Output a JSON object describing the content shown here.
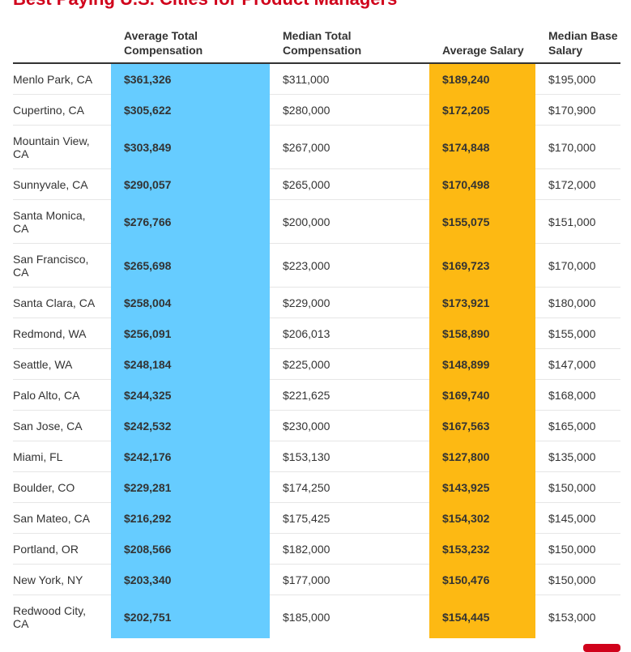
{
  "header": {
    "title": "Best Paying U.S. Cities for Product Managers"
  },
  "table": {
    "columns": [
      "",
      "Average Total Compensation",
      "Median Total Compensation",
      "Average Salary",
      "Median Base Salary"
    ],
    "rows": [
      [
        "Menlo Park, CA",
        "$361,326",
        "$311,000",
        "$189,240",
        "$195,000"
      ],
      [
        "Cupertino, CA",
        "$305,622",
        "$280,000",
        "$172,205",
        "$170,900"
      ],
      [
        "Mountain View, CA",
        "$303,849",
        "$267,000",
        "$174,848",
        "$170,000"
      ],
      [
        "Sunnyvale, CA",
        "$290,057",
        "$265,000",
        "$170,498",
        "$172,000"
      ],
      [
        "Santa Monica, CA",
        "$276,766",
        "$200,000",
        "$155,075",
        "$151,000"
      ],
      [
        "San Francisco, CA",
        "$265,698",
        "$223,000",
        "$169,723",
        "$170,000"
      ],
      [
        "Santa Clara, CA",
        "$258,004",
        "$229,000",
        "$173,921",
        "$180,000"
      ],
      [
        "Redmond, WA",
        "$256,091",
        "$206,013",
        "$158,890",
        "$155,000"
      ],
      [
        "Seattle, WA",
        "$248,184",
        "$225,000",
        "$148,899",
        "$147,000"
      ],
      [
        "Palo Alto, CA",
        "$244,325",
        "$221,625",
        "$169,740",
        "$168,000"
      ],
      [
        "San Jose, CA",
        "$242,532",
        "$230,000",
        "$167,563",
        "$165,000"
      ],
      [
        "Miami, FL",
        "$242,176",
        "$153,130",
        "$127,800",
        "$135,000"
      ],
      [
        "Boulder, CO",
        "$229,281",
        "$174,250",
        "$143,925",
        "$150,000"
      ],
      [
        "San Mateo, CA",
        "$216,292",
        "$175,425",
        "$154,302",
        "$145,000"
      ],
      [
        "Portland, OR",
        "$208,566",
        "$182,000",
        "$153,232",
        "$150,000"
      ],
      [
        "New York, NY",
        "$203,340",
        "$177,000",
        "$150,476",
        "$150,000"
      ],
      [
        "Redwood City, CA",
        "$202,751",
        "$185,000",
        "$154,445",
        "$153,000"
      ]
    ]
  }
}
